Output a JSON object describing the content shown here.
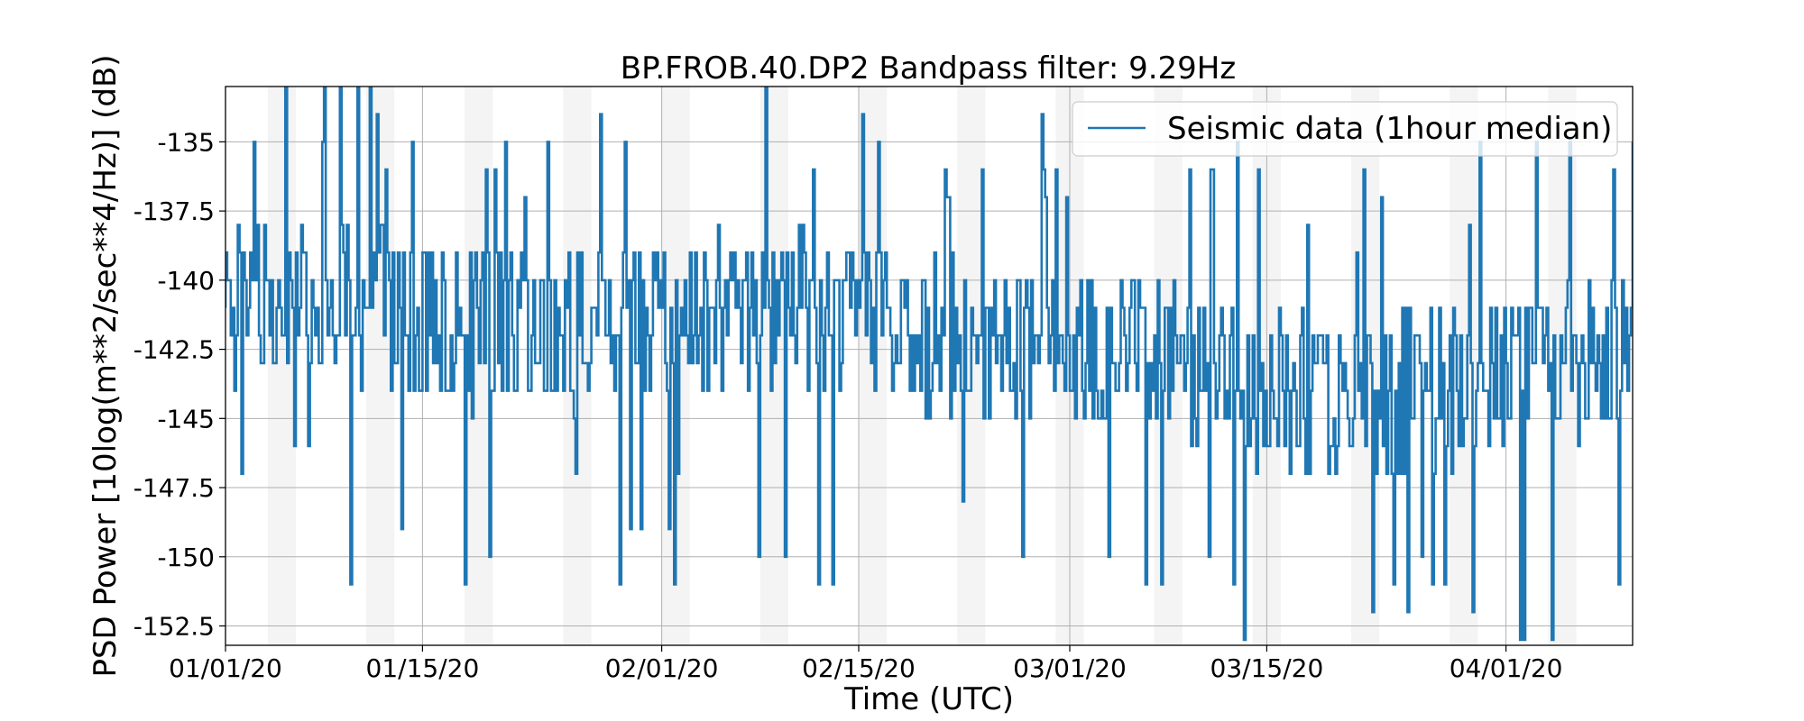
{
  "chart_data": {
    "type": "line",
    "title": "BP.FROB.40.DP2 Bandpass filter: 9.29Hz",
    "xlabel": "Time (UTC)",
    "ylabel": "PSD Power [10log(m**2/sec**4/Hz)] (dB)",
    "xlim": [
      "2020-01-01",
      "2020-04-10"
    ],
    "ylim": [
      -153.2,
      -133.0
    ],
    "x_ticks": [
      "2020-01-01",
      "2020-01-15",
      "2020-02-01",
      "2020-02-15",
      "2020-03-01",
      "2020-03-15",
      "2020-04-01"
    ],
    "x_tick_labels": [
      "01/01/20",
      "01/15/20",
      "02/01/20",
      "02/15/20",
      "03/01/20",
      "03/15/20",
      "04/01/20"
    ],
    "y_ticks": [
      -135,
      -137.5,
      -140,
      -142.5,
      -145,
      -147.5,
      -150,
      -152.5
    ],
    "y_tick_labels": [
      "-135",
      "-137.5",
      "-140",
      "-142.5",
      "-145",
      "-147.5",
      "-150",
      "-152.5"
    ],
    "grid": true,
    "legend_position": "top-right",
    "weekend_bands": [
      [
        "2020-01-04",
        "2020-01-06"
      ],
      [
        "2020-01-11",
        "2020-01-13"
      ],
      [
        "2020-01-18",
        "2020-01-20"
      ],
      [
        "2020-01-25",
        "2020-01-27"
      ],
      [
        "2020-02-01",
        "2020-02-03"
      ],
      [
        "2020-02-08",
        "2020-02-10"
      ],
      [
        "2020-02-15",
        "2020-02-17"
      ],
      [
        "2020-02-22",
        "2020-02-24"
      ],
      [
        "2020-02-29",
        "2020-03-02"
      ],
      [
        "2020-03-07",
        "2020-03-09"
      ],
      [
        "2020-03-14",
        "2020-03-16"
      ],
      [
        "2020-03-21",
        "2020-03-23"
      ],
      [
        "2020-03-28",
        "2020-03-30"
      ],
      [
        "2020-04-04",
        "2020-04-06"
      ]
    ],
    "series": [
      {
        "name": "Seismic data (1hour median)",
        "color": "#1f77b4",
        "x": [
          "2020-01-01",
          "2020-01-08",
          "2020-01-15",
          "2020-01-22",
          "2020-02-01",
          "2020-02-08",
          "2020-02-15",
          "2020-02-22",
          "2020-03-01",
          "2020-03-08",
          "2020-03-15",
          "2020-03-22",
          "2020-04-01",
          "2020-04-08"
        ],
        "y": [
          -141.0,
          -140.5,
          -141.5,
          -142.0,
          -141.5,
          -141.0,
          -141.5,
          -142.0,
          -142.5,
          -142.5,
          -144.0,
          -144.5,
          -143.5,
          -142.5
        ],
        "note": "hourly values fluctuate rapidly between about -153 and -133 dB around this trend"
      }
    ]
  }
}
